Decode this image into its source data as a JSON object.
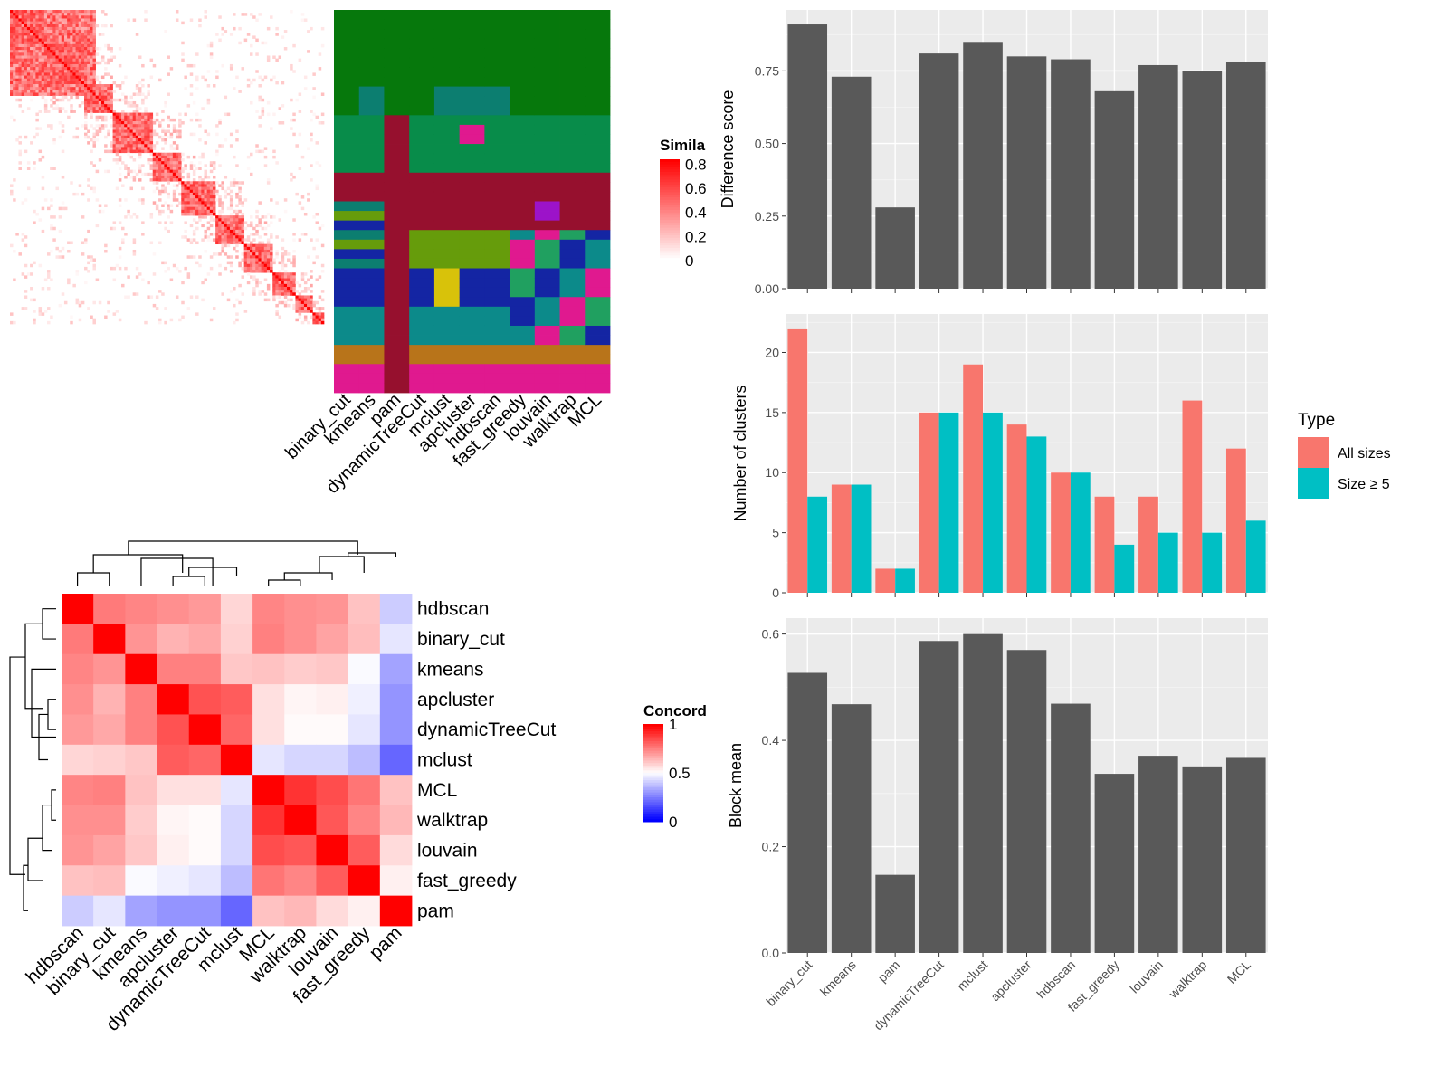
{
  "chart_data": [
    {
      "type": "heatmap",
      "legend_title": "Simila",
      "legend_ticks": [
        "0",
        "0.2",
        "0.4",
        "0.6",
        "0.8"
      ],
      "column_labels": [
        "binary_cut",
        "kmeans",
        "pam",
        "dynamicTreeCut",
        "mclust",
        "apcluster",
        "hdbscan",
        "fast_greedy",
        "louvain",
        "walktrap",
        "MCL"
      ],
      "colors": {
        "low": "#ffffff",
        "high": "#ff0000",
        "palette": [
          "#06780c",
          "#088c4a",
          "#0c7e70",
          "#96102e",
          "#e0198f",
          "#669c0b",
          "#1425a3",
          "#d8c20a",
          "#b8741a",
          "#9c13c9",
          "#0c8a8a",
          "#20a060"
        ]
      }
    },
    {
      "type": "heatmap",
      "legend_title": "Concord",
      "legend_ticks": [
        "0",
        "0.5",
        "1"
      ],
      "colors": {
        "low": "#0000ff",
        "mid": "#ffffff",
        "high": "#ff0000"
      },
      "row_labels": [
        "hdbscan",
        "binary_cut",
        "kmeans",
        "apcluster",
        "dynamicTreeCut",
        "mclust",
        "MCL",
        "walktrap",
        "louvain",
        "fast_greedy",
        "pam"
      ],
      "col_labels": [
        "hdbscan",
        "binary_cut",
        "kmeans",
        "apcluster",
        "dynamicTreeCut",
        "mclust",
        "MCL",
        "walktrap",
        "louvain",
        "fast_greedy",
        "pam"
      ],
      "values": [
        [
          1.0,
          0.76,
          0.74,
          0.72,
          0.7,
          0.58,
          0.74,
          0.72,
          0.71,
          0.62,
          0.4
        ],
        [
          0.76,
          1.0,
          0.71,
          0.65,
          0.67,
          0.59,
          0.75,
          0.72,
          0.68,
          0.63,
          0.45
        ],
        [
          0.74,
          0.71,
          1.0,
          0.75,
          0.75,
          0.61,
          0.62,
          0.6,
          0.61,
          0.49,
          0.32
        ],
        [
          0.72,
          0.65,
          0.75,
          1.0,
          0.84,
          0.82,
          0.56,
          0.52,
          0.53,
          0.47,
          0.29
        ],
        [
          0.7,
          0.67,
          0.75,
          0.84,
          1.0,
          0.8,
          0.56,
          0.51,
          0.51,
          0.45,
          0.29
        ],
        [
          0.58,
          0.59,
          0.61,
          0.82,
          0.8,
          1.0,
          0.45,
          0.42,
          0.42,
          0.37,
          0.2
        ],
        [
          0.74,
          0.75,
          0.62,
          0.56,
          0.56,
          0.45,
          1.0,
          0.9,
          0.85,
          0.77,
          0.62
        ],
        [
          0.72,
          0.72,
          0.6,
          0.52,
          0.51,
          0.42,
          0.9,
          1.0,
          0.83,
          0.74,
          0.64
        ],
        [
          0.71,
          0.68,
          0.61,
          0.53,
          0.51,
          0.42,
          0.85,
          0.83,
          1.0,
          0.82,
          0.57
        ],
        [
          0.62,
          0.63,
          0.49,
          0.47,
          0.45,
          0.37,
          0.77,
          0.74,
          0.82,
          1.0,
          0.53
        ],
        [
          0.4,
          0.45,
          0.32,
          0.29,
          0.29,
          0.2,
          0.62,
          0.64,
          0.57,
          0.53,
          1.0
        ]
      ]
    },
    {
      "type": "bar",
      "categories": [
        "binary_cut",
        "kmeans",
        "pam",
        "dynamicTreeCut",
        "mclust",
        "apcluster",
        "hdbscan",
        "fast_greedy",
        "louvain",
        "walktrap",
        "MCL"
      ],
      "values": [
        0.91,
        0.73,
        0.28,
        0.81,
        0.85,
        0.8,
        0.79,
        0.68,
        0.77,
        0.75,
        0.78
      ],
      "ylabel": "Difference score",
      "ylim": [
        0,
        0.96
      ],
      "yticks": [
        "0.00",
        "0.25",
        "0.50",
        "0.75"
      ],
      "grid": true,
      "bar_color": "#595959"
    },
    {
      "type": "bar",
      "categories": [
        "binary_cut",
        "kmeans",
        "pam",
        "dynamicTreeCut",
        "mclust",
        "apcluster",
        "hdbscan",
        "fast_greedy",
        "louvain",
        "walktrap",
        "MCL"
      ],
      "series": [
        {
          "name": "All sizes",
          "values": [
            22,
            9,
            2,
            15,
            19,
            14,
            10,
            8,
            8,
            16,
            12
          ],
          "color": "#f8766d"
        },
        {
          "name": "Size ≥ 5",
          "values": [
            8,
            9,
            2,
            15,
            15,
            13,
            10,
            4,
            5,
            5,
            6
          ],
          "color": "#00bfc4"
        }
      ],
      "ylabel": "Number of clusters",
      "ylim": [
        0,
        23.2
      ],
      "yticks": [
        "0",
        "5",
        "10",
        "15",
        "20"
      ],
      "legend_title": "Type",
      "legend_position": "right",
      "grid": true
    },
    {
      "type": "bar",
      "categories": [
        "binary_cut",
        "kmeans",
        "pam",
        "dynamicTreeCut",
        "mclust",
        "apcluster",
        "hdbscan",
        "fast_greedy",
        "louvain",
        "walktrap",
        "MCL"
      ],
      "values": [
        0.527,
        0.468,
        0.147,
        0.587,
        0.6,
        0.57,
        0.469,
        0.337,
        0.371,
        0.351,
        0.367
      ],
      "ylabel": "Block mean",
      "ylim": [
        0,
        0.63
      ],
      "yticks": [
        "0.0",
        "0.2",
        "0.4",
        "0.6"
      ],
      "grid": true,
      "bar_color": "#595959"
    }
  ]
}
